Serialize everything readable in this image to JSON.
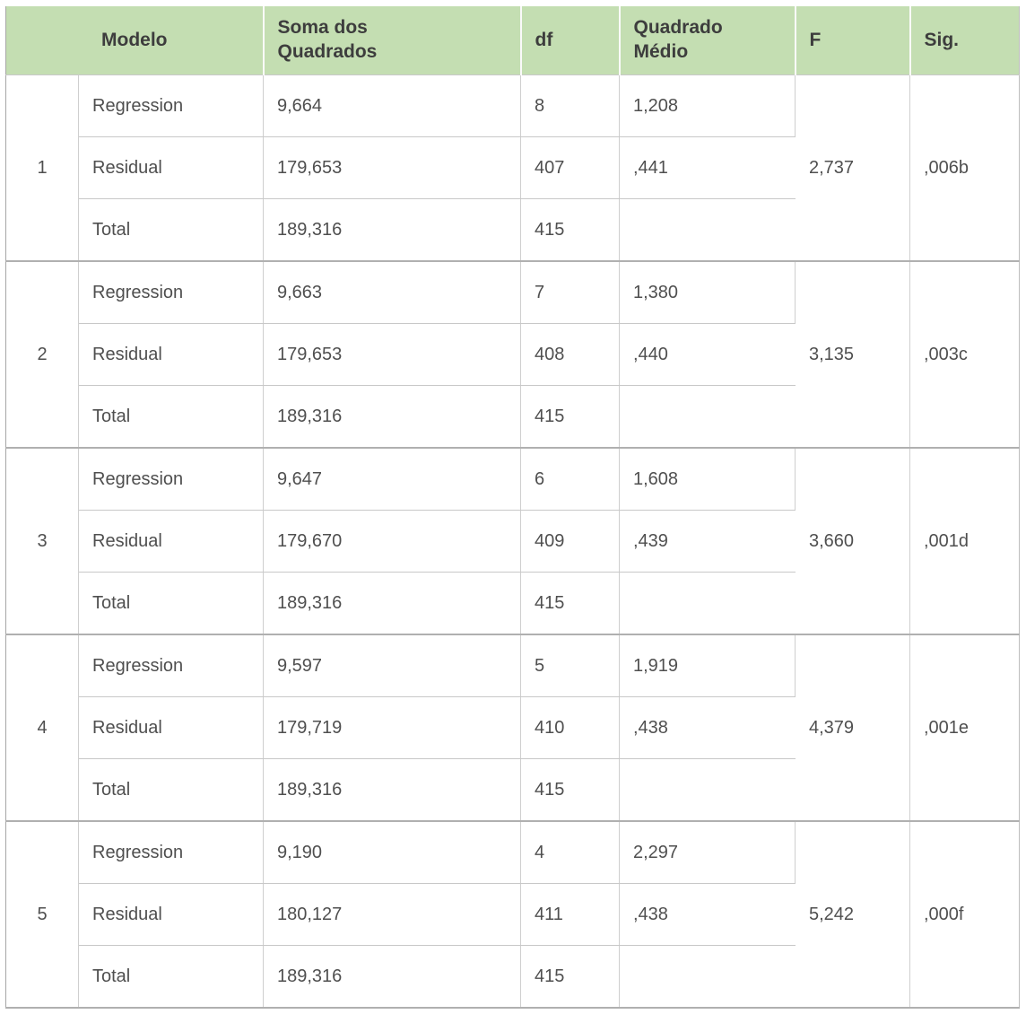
{
  "table": {
    "headers": {
      "modelo": "Modelo",
      "soma": "Soma dos\nQuadrados",
      "df": "df",
      "quadrado_medio": "Quadrado\nMédio",
      "f": "F",
      "sig": "Sig."
    },
    "row_labels": {
      "regression": "Regression",
      "residual": "Residual",
      "total": "Total"
    },
    "models": [
      {
        "id": "1",
        "regression": {
          "soma": "9,664",
          "df": "8",
          "qm": "1,208"
        },
        "residual": {
          "soma": "179,653",
          "df": "407",
          "qm": ",441"
        },
        "total": {
          "soma": "189,316",
          "df": "415",
          "qm": ""
        },
        "f": "2,737",
        "sig": ",006b"
      },
      {
        "id": "2",
        "regression": {
          "soma": "9,663",
          "df": "7",
          "qm": "1,380"
        },
        "residual": {
          "soma": "179,653",
          "df": "408",
          "qm": ",440"
        },
        "total": {
          "soma": "189,316",
          "df": "415",
          "qm": ""
        },
        "f": "3,135",
        "sig": ",003c"
      },
      {
        "id": "3",
        "regression": {
          "soma": "9,647",
          "df": "6",
          "qm": "1,608"
        },
        "residual": {
          "soma": "179,670",
          "df": "409",
          "qm": ",439"
        },
        "total": {
          "soma": "189,316",
          "df": "415",
          "qm": ""
        },
        "f": "3,660",
        "sig": ",001d"
      },
      {
        "id": "4",
        "regression": {
          "soma": "9,597",
          "df": "5",
          "qm": "1,919"
        },
        "residual": {
          "soma": "179,719",
          "df": "410",
          "qm": ",438"
        },
        "total": {
          "soma": "189,316",
          "df": "415",
          "qm": ""
        },
        "f": "4,379",
        "sig": ",001e"
      },
      {
        "id": "5",
        "regression": {
          "soma": "9,190",
          "df": "4",
          "qm": "2,297"
        },
        "residual": {
          "soma": "180,127",
          "df": "411",
          "qm": ",438"
        },
        "total": {
          "soma": "189,316",
          "df": "415",
          "qm": ""
        },
        "f": "5,242",
        "sig": ",000f"
      }
    ]
  },
  "colors": {
    "header_bg": "#c4deb2",
    "header_text": "#3d3d3d",
    "body_text": "#4f4f4f",
    "grid_line": "#cfcfcf",
    "row_separator": "#c8c8c8",
    "block_separator": "#b0b0b0"
  },
  "chart_data": {
    "type": "table",
    "title": "",
    "columns": [
      "Modelo",
      "",
      "Soma dos Quadrados",
      "df",
      "Quadrado Médio",
      "F",
      "Sig."
    ],
    "rows": [
      [
        "1",
        "Regression",
        "9,664",
        "8",
        "1,208",
        "2,737",
        ",006b"
      ],
      [
        "1",
        "Residual",
        "179,653",
        "407",
        ",441",
        "",
        ""
      ],
      [
        "1",
        "Total",
        "189,316",
        "415",
        "",
        "",
        ""
      ],
      [
        "2",
        "Regression",
        "9,663",
        "7",
        "1,380",
        "3,135",
        ",003c"
      ],
      [
        "2",
        "Residual",
        "179,653",
        "408",
        ",440",
        "",
        ""
      ],
      [
        "2",
        "Total",
        "189,316",
        "415",
        "",
        "",
        ""
      ],
      [
        "3",
        "Regression",
        "9,647",
        "6",
        "1,608",
        "3,660",
        ",001d"
      ],
      [
        "3",
        "Residual",
        "179,670",
        "409",
        ",439",
        "",
        ""
      ],
      [
        "3",
        "Total",
        "189,316",
        "415",
        "",
        "",
        ""
      ],
      [
        "4",
        "Regression",
        "9,597",
        "5",
        "1,919",
        "4,379",
        ",001e"
      ],
      [
        "4",
        "Residual",
        "179,719",
        "410",
        ",438",
        "",
        ""
      ],
      [
        "4",
        "Total",
        "189,316",
        "415",
        "",
        "",
        ""
      ],
      [
        "5",
        "Regression",
        "9,190",
        "4",
        "2,297",
        "5,242",
        ",000f"
      ],
      [
        "5",
        "Residual",
        "180,127",
        "411",
        ",438",
        "",
        ""
      ],
      [
        "5",
        "Total",
        "189,316",
        "415",
        "",
        "",
        ""
      ]
    ]
  }
}
